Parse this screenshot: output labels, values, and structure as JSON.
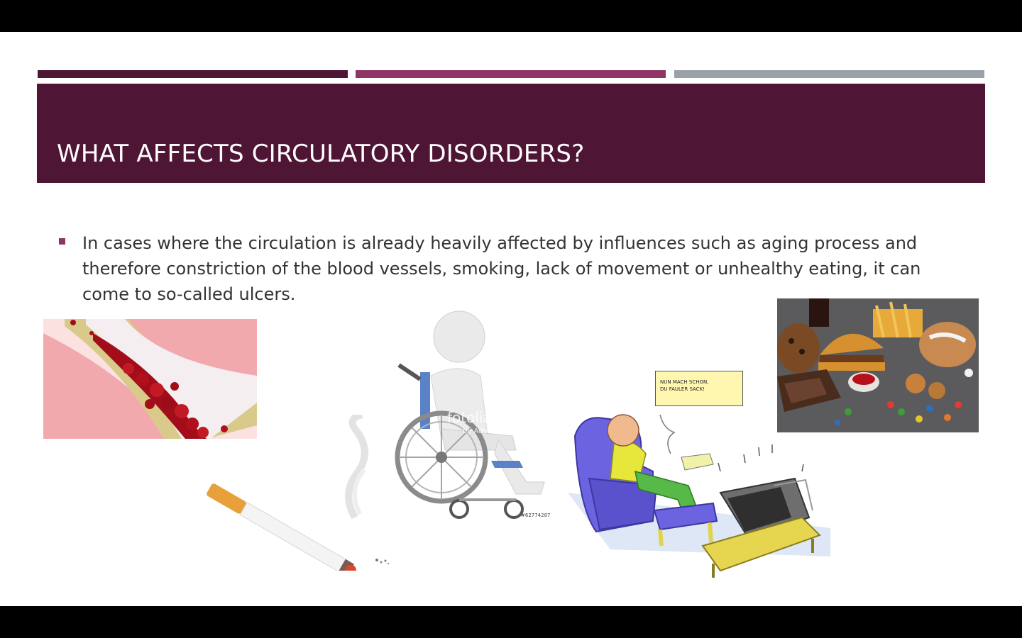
{
  "slide": {
    "title": "WHAT AFFECTS CIRCULATORY DISORDERS?",
    "bullet": "In cases where the circulation is already heavily affected by influences such as aging process and therefore constriction of the blood vessels, smoking, lack of movement or unhealthy eating, it can come to so-called ulcers."
  },
  "images": {
    "wheelchair": {
      "watermark": "fotolia",
      "watermark_sub": "by Adobe",
      "stock_id": "#62774287"
    },
    "couch": {
      "speech_line1": "NUN MACH SCHON,",
      "speech_line2": "DU FAULER SACK!"
    }
  },
  "colors": {
    "title_band": "#4e1634",
    "accent_1": "#4e1634",
    "accent_2": "#8f3465",
    "accent_3": "#9aa1ab",
    "bullet": "#8f3465",
    "text": "#333333"
  }
}
